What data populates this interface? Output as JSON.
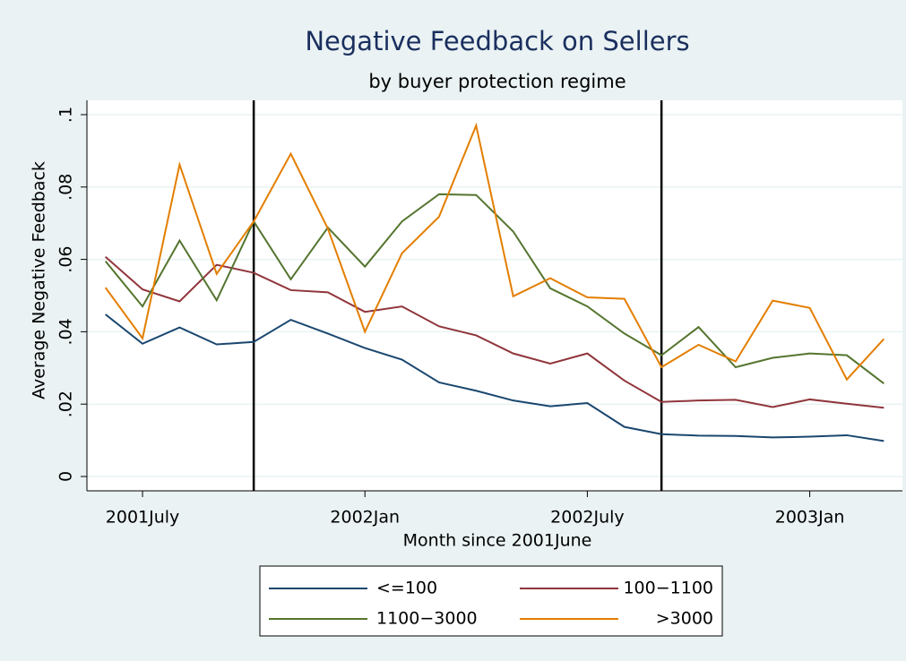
{
  "chart_data": {
    "type": "line",
    "title": "Negative Feedback on Sellers",
    "subtitle": "by buyer protection regime",
    "x_label": "Month since 2001June",
    "y_label": "Average Negative Feedback",
    "x": [
      497,
      498,
      499,
      500,
      501,
      502,
      503,
      504,
      505,
      506,
      507,
      508,
      509,
      510,
      511,
      512,
      513,
      514,
      515,
      516,
      517,
      518
    ],
    "xlim": [
      496.5,
      518.5
    ],
    "xticks": [
      {
        "value": 498,
        "label": "2001July"
      },
      {
        "value": 504,
        "label": "2002Jan"
      },
      {
        "value": 510,
        "label": "2002July"
      },
      {
        "value": 516,
        "label": "2003Jan"
      }
    ],
    "xlines": [
      501,
      512
    ],
    "ylim": [
      0,
      0.1
    ],
    "yticks": [
      0,
      {
        "value": 0.02,
        "label": ".02"
      },
      {
        "value": 0.04,
        "label": ".04"
      },
      {
        "value": 0.06,
        "label": ".06"
      },
      {
        "value": 0.08,
        "label": ".08"
      },
      {
        "value": 0.1,
        "label": ".1"
      }
    ],
    "grid": true,
    "legend_position": "bottom",
    "series": [
      {
        "name": "<=100",
        "color": "#1a476f",
        "values": [
          0.0448,
          0.0367,
          0.0412,
          0.0365,
          0.0372,
          0.0433,
          0.0395,
          0.0355,
          0.0323,
          0.026,
          0.0237,
          0.021,
          0.0194,
          0.0203,
          0.0137,
          0.0117,
          0.0113,
          0.0112,
          0.0108,
          0.011,
          0.0114,
          0.0098
        ]
      },
      {
        "name": "100−1100",
        "color": "#90353b",
        "values": [
          0.0607,
          0.0517,
          0.0484,
          0.0585,
          0.0563,
          0.0515,
          0.0509,
          0.0455,
          0.047,
          0.0415,
          0.039,
          0.034,
          0.0312,
          0.034,
          0.0265,
          0.0206,
          0.021,
          0.0212,
          0.0192,
          0.0213,
          0.0201,
          0.019
        ]
      },
      {
        "name": "1100−3000",
        "color": "#55752f",
        "values": [
          0.0595,
          0.047,
          0.0652,
          0.0487,
          0.0705,
          0.0545,
          0.0688,
          0.058,
          0.0705,
          0.078,
          0.0778,
          0.0677,
          0.052,
          0.047,
          0.0395,
          0.0335,
          0.0413,
          0.0302,
          0.0328,
          0.034,
          0.0335,
          0.0257
        ]
      },
      {
        "name": ">3000",
        "color": "#e37e00",
        "values": [
          0.0522,
          0.0382,
          0.0862,
          0.056,
          0.0705,
          0.0892,
          0.0685,
          0.04,
          0.0617,
          0.0718,
          0.097,
          0.0498,
          0.0548,
          0.0495,
          0.0491,
          0.0302,
          0.0364,
          0.0318,
          0.0486,
          0.0466,
          0.0268,
          0.038
        ]
      }
    ]
  }
}
